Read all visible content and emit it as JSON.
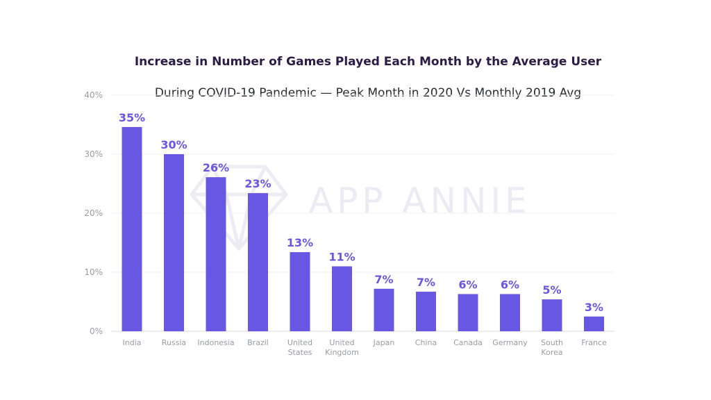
{
  "chart_data": {
    "type": "bar",
    "title": "Increase in Number of Games Played Each Month by the Average User",
    "subtitle": "During COVID-19 Pandemic — Peak Month in 2020 Vs Monthly 2019 Avg",
    "categories": [
      "India",
      "Russia",
      "Indonesia",
      "Brazil",
      "United States",
      "United Kingdom",
      "Japan",
      "China",
      "Canada",
      "Germany",
      "South Korea",
      "France"
    ],
    "values": [
      35,
      30,
      26,
      23,
      13,
      11,
      7,
      7,
      6,
      6,
      5,
      3
    ],
    "value_labels": [
      "35%",
      "30%",
      "26%",
      "23%",
      "13%",
      "11%",
      "7%",
      "7%",
      "6%",
      "6%",
      "5%",
      "3%"
    ],
    "plot_values": [
      34.6,
      30.0,
      26.1,
      23.4,
      13.4,
      11.0,
      7.2,
      6.7,
      6.3,
      6.3,
      5.4,
      2.5
    ],
    "ylim": [
      0,
      40
    ],
    "yticks": [
      0,
      10,
      20,
      30,
      40
    ],
    "ytick_labels": [
      "0%",
      "10%",
      "20%",
      "30%",
      "40%"
    ],
    "xlabel": "",
    "ylabel": "",
    "grid": true,
    "bar_color": "#6857e3",
    "label_color": "#6857e3"
  },
  "watermark": {
    "text": "APP ANNIE"
  }
}
